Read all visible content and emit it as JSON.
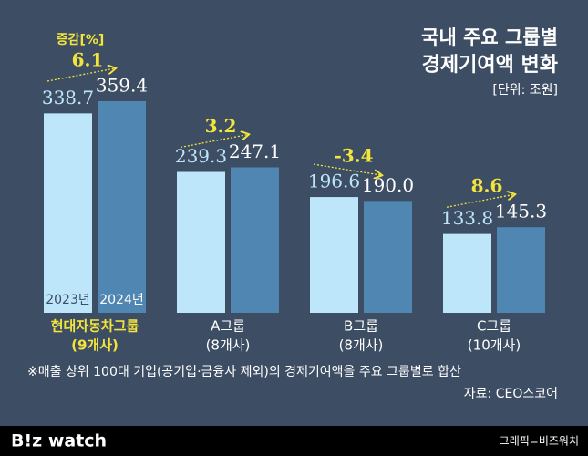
{
  "chart_data": {
    "type": "bar",
    "title": "국내 주요 그룹별",
    "subtitle": "경제기여액 변화",
    "unit": "[단위: 조원]",
    "categories": [
      "현대자동차그룹",
      "A그룹",
      "B그룹",
      "C그룹"
    ],
    "category_notes": [
      "(9개사)",
      "(8개사)",
      "(8개사)",
      "(10개사)"
    ],
    "series": [
      {
        "name": "2023년",
        "color": "#bde6fb",
        "values": [
          338.7,
          239.3,
          196.6,
          133.8
        ]
      },
      {
        "name": "2024년",
        "color": "#4f86b2",
        "values": [
          359.4,
          247.1,
          190.0,
          145.3
        ]
      }
    ],
    "value_labels": [
      [
        "338.7",
        "239.3",
        "196.6",
        "133.8"
      ],
      [
        "359.4",
        "247.1",
        "190.0",
        "145.3"
      ]
    ],
    "change_title": "증감[%]",
    "changes": [
      6.1,
      3.2,
      -3.4,
      8.6
    ],
    "note": "※매출 상위 100대 기업(공기업·금융사 제외)의 경제기여액을 주요 그룹별로 합산",
    "source": "자료: CEO스코어",
    "credit": "그래픽=비즈워치",
    "brand": "B!z watch"
  }
}
